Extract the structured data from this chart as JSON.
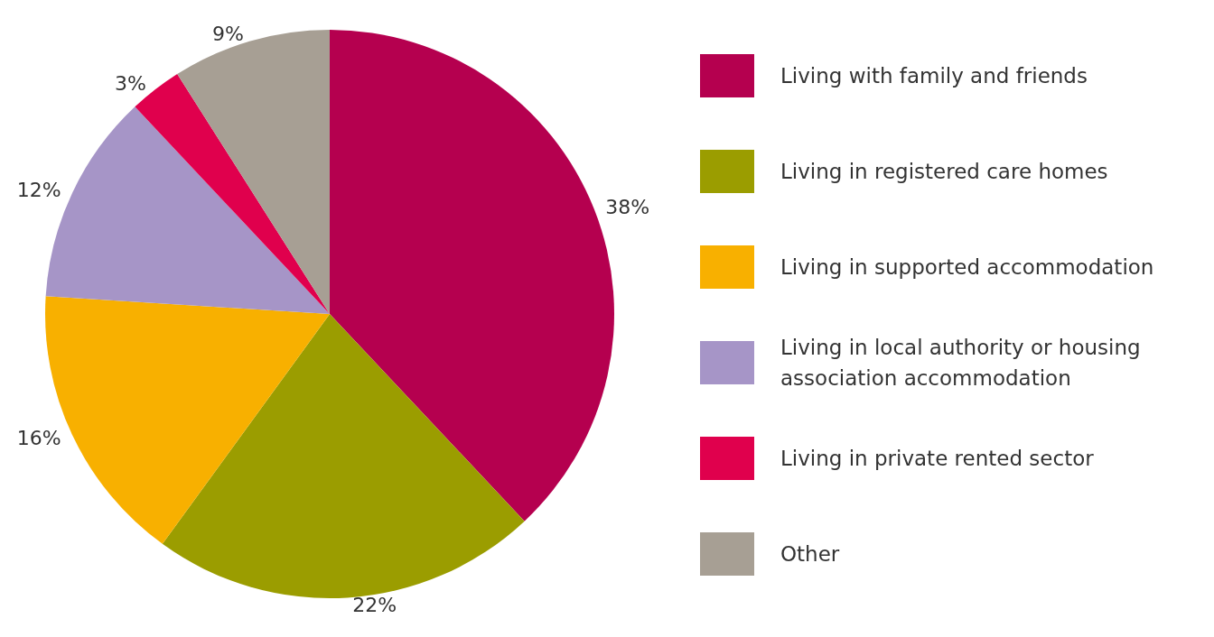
{
  "chart_data": {
    "type": "pie",
    "categories": [
      "Living with family and friends",
      "Living in registered care homes",
      "Living in supported accommodation",
      "Living in local authority or housing association accommodation",
      "Living in private rented sector",
      "Other"
    ],
    "values": [
      38,
      22,
      16,
      12,
      3,
      9
    ],
    "value_labels": [
      "38%",
      "22%",
      "16%",
      "12%",
      "3%",
      "9%"
    ],
    "colors": [
      "#b5004f",
      "#9b9d00",
      "#f8b000",
      "#a695c7",
      "#e0004d",
      "#a79f94"
    ],
    "legend": "right"
  }
}
